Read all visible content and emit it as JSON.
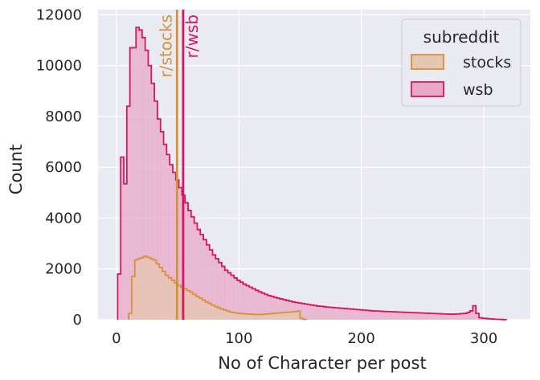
{
  "chart_data": {
    "type": "histogram",
    "xlabel": "No of Character per post",
    "ylabel": "Count",
    "xlim": [
      -15,
      338
    ],
    "ylim": [
      0,
      12200
    ],
    "xticks": [
      0,
      100,
      200,
      300
    ],
    "yticks": [
      0,
      2000,
      4000,
      6000,
      8000,
      10000,
      12000
    ],
    "grid": true,
    "legend": {
      "title": "subreddit",
      "placement": "top-right"
    },
    "series": [
      {
        "name": "wsb",
        "color": "#d6175b",
        "fill": "#e8a9c8",
        "bin_start": 1,
        "bin_width": 2.5,
        "values": [
          1800,
          6400,
          5350,
          8400,
          10700,
          10700,
          11500,
          11400,
          11100,
          10600,
          10000,
          9300,
          8600,
          7900,
          7400,
          6900,
          6500,
          6100,
          5800,
          5500,
          5200,
          4900,
          4600,
          4300,
          4050,
          3800,
          3550,
          3350,
          3150,
          2950,
          2750,
          2550,
          2400,
          2250,
          2100,
          1950,
          1850,
          1750,
          1650,
          1550,
          1480,
          1400,
          1340,
          1280,
          1220,
          1160,
          1100,
          1050,
          1000,
          950,
          920,
          880,
          850,
          820,
          790,
          760,
          730,
          700,
          680,
          660,
          640,
          620,
          600,
          580,
          560,
          540,
          530,
          515,
          500,
          490,
          480,
          470,
          460,
          450,
          440,
          430,
          420,
          410,
          400,
          390,
          380,
          370,
          360,
          350,
          345,
          340,
          330,
          325,
          320,
          315,
          310,
          305,
          300,
          295,
          290,
          285,
          280,
          275,
          270,
          265,
          260,
          255,
          250,
          245,
          240,
          235,
          230,
          225,
          220,
          220,
          225,
          230,
          240,
          250,
          280,
          350,
          550,
          250,
          80,
          60,
          50,
          40,
          30,
          20,
          15,
          10,
          5
        ]
      },
      {
        "name": "stocks",
        "color": "#d4933a",
        "fill": "#e5c6b0",
        "bin_start": 10,
        "bin_width": 2.5,
        "values": [
          250,
          1700,
          2350,
          2400,
          2450,
          2500,
          2450,
          2400,
          2350,
          2200,
          2050,
          1900,
          1750,
          1650,
          1550,
          1450,
          1350,
          1280,
          1220,
          1150,
          1080,
          1000,
          920,
          850,
          780,
          700,
          640,
          580,
          520,
          470,
          420,
          380,
          340,
          300,
          280,
          260,
          250,
          240,
          230,
          220,
          215,
          210,
          205,
          210,
          220,
          230,
          240,
          250,
          260,
          270,
          280,
          290,
          300,
          310,
          320,
          340,
          60,
          15
        ]
      }
    ],
    "annotations": [
      {
        "text": "r/stocks",
        "x": 49.5,
        "color": "#d4933a"
      },
      {
        "text": "r/wsb",
        "x": 54.5,
        "color": "#d6175b"
      }
    ]
  }
}
